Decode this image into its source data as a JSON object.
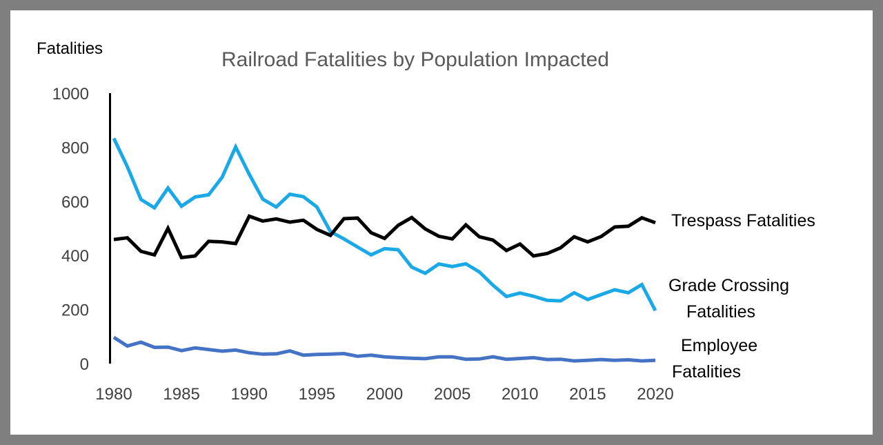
{
  "chart_data": {
    "type": "line",
    "title": "Railroad Fatalities by Population Impacted",
    "xlabel": "",
    "ylabel": "Fatalities",
    "xlim": [
      1980,
      2020
    ],
    "ylim": [
      0,
      1000
    ],
    "xticks": [
      "1980",
      "1985",
      "1990",
      "1995",
      "2000",
      "2005",
      "2010",
      "2015",
      "2020"
    ],
    "yticks": [
      "0",
      "200",
      "400",
      "600",
      "800",
      "1000"
    ],
    "grid": false,
    "legend": "direct labels at right",
    "x": [
      1980,
      1981,
      1982,
      1983,
      1984,
      1985,
      1986,
      1987,
      1988,
      1989,
      1990,
      1991,
      1992,
      1993,
      1994,
      1995,
      1996,
      1997,
      1998,
      1999,
      2000,
      2001,
      2002,
      2003,
      2004,
      2005,
      2006,
      2007,
      2008,
      2009,
      2010,
      2011,
      2012,
      2013,
      2014,
      2015,
      2016,
      2017,
      2018,
      2019,
      2020
    ],
    "series": [
      {
        "name": "Trespass Fatalities",
        "label_lines": [
          "Trespass Fatalities"
        ],
        "color": "#000000",
        "values": [
          459,
          465,
          415,
          402,
          500,
          392,
          398,
          452,
          450,
          444,
          545,
          527,
          535,
          523,
          530,
          496,
          474,
          536,
          538,
          484,
          463,
          511,
          540,
          498,
          471,
          461,
          513,
          469,
          457,
          418,
          442,
          398,
          407,
          428,
          469,
          450,
          470,
          505,
          508,
          539,
          521
        ]
      },
      {
        "name": "Grade Crossing Fatalities",
        "label_lines": [
          "Grade Crossing",
          "Fatalities"
        ],
        "color": "#1aa9e6",
        "values": [
          833,
          728,
          607,
          576,
          649,
          582,
          616,
          624,
          689,
          801,
          700,
          608,
          579,
          626,
          617,
          579,
          488,
          461,
          431,
          402,
          425,
          421,
          357,
          334,
          368,
          359,
          369,
          339,
          290,
          248,
          261,
          249,
          234,
          232,
          262,
          237,
          255,
          273,
          262,
          292,
          196
        ]
      },
      {
        "name": "Employee Fatalities",
        "label_lines": [
          "Employee",
          "Fatalities"
        ],
        "color": "#4472c4",
        "values": [
          97,
          65,
          79,
          60,
          61,
          48,
          58,
          52,
          46,
          50,
          40,
          35,
          36,
          47,
          31,
          34,
          35,
          37,
          27,
          31,
          25,
          22,
          20,
          18,
          25,
          25,
          16,
          17,
          25,
          16,
          19,
          22,
          15,
          16,
          10,
          12,
          15,
          12,
          14,
          10,
          12
        ]
      }
    ]
  }
}
